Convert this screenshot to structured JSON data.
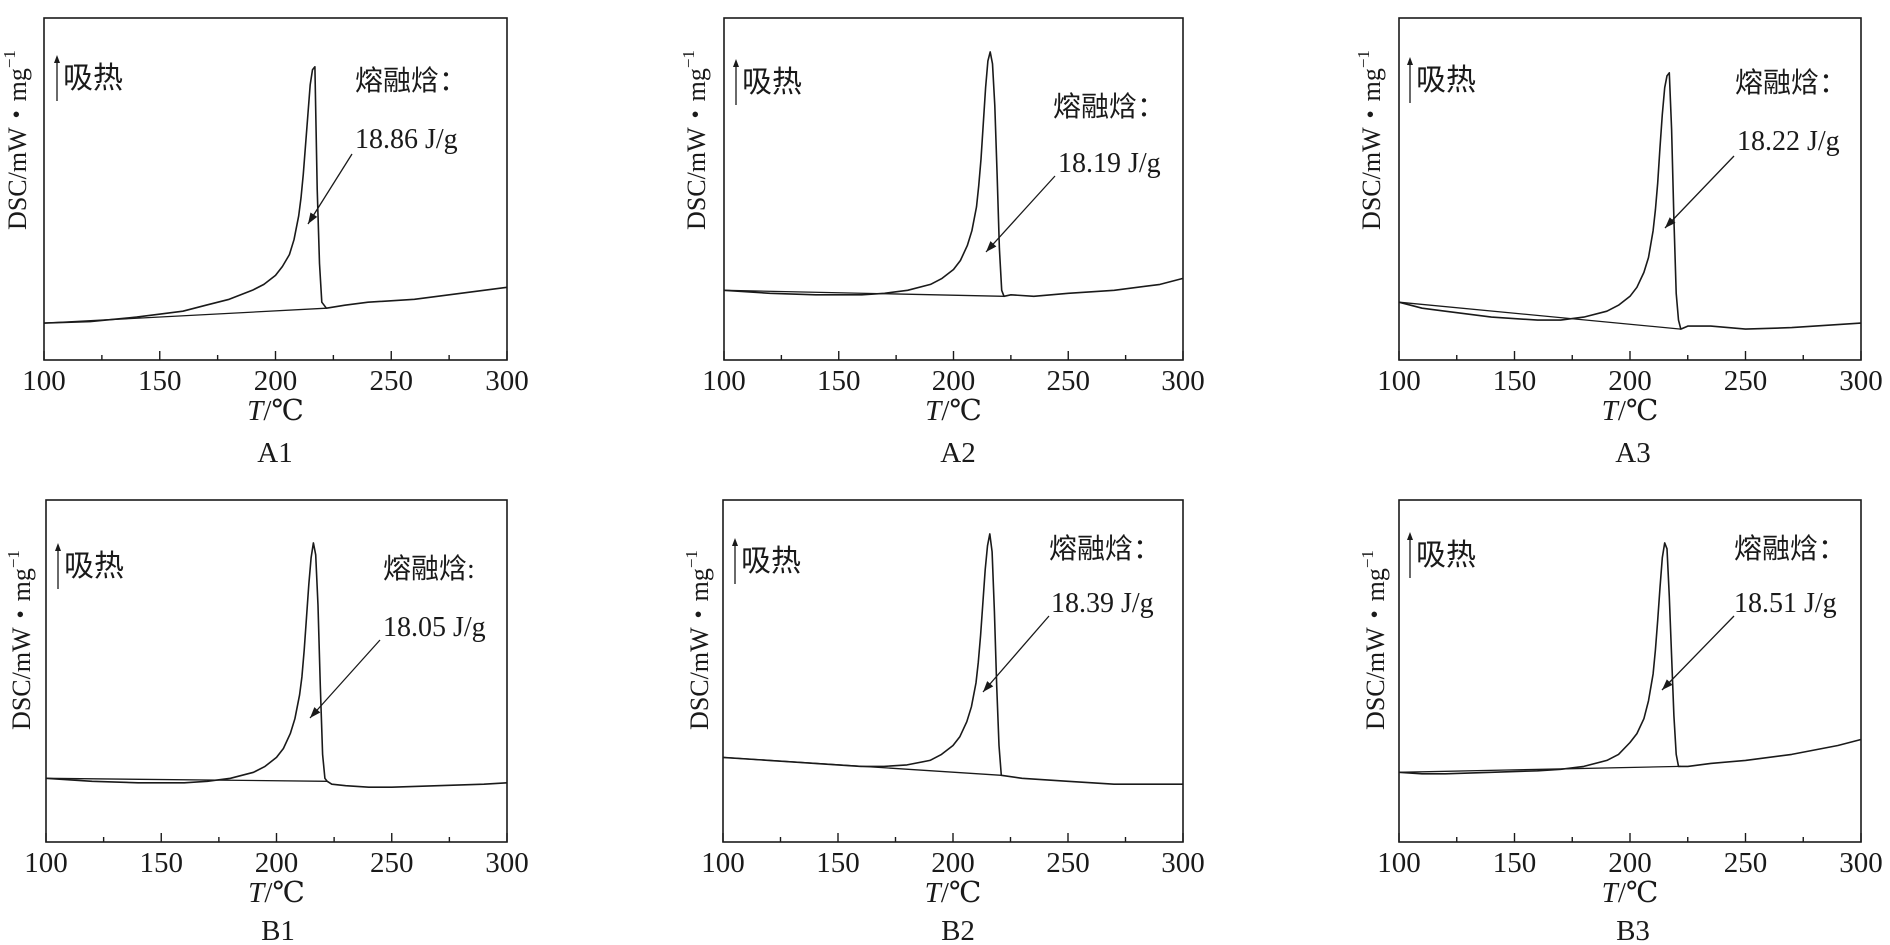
{
  "colors": {
    "ink": "#1a1a1a",
    "background": "#ffffff"
  },
  "chart_data": [
    {
      "type": "line",
      "panel_label": "A1",
      "xlabel_italic": "T",
      "xlabel_unit": "/℃",
      "ylabel": "DSC/mW・mg",
      "ylabel_sup": "−1",
      "endotherm_label": "吸热",
      "enthalpy_title": "熔融焓：",
      "enthalpy_value": "18.86 J/g",
      "xlim": [
        100,
        300
      ],
      "xticks": [
        100,
        150,
        200,
        250,
        300
      ],
      "ylim": [
        0,
        1
      ],
      "series": [
        {
          "x": [
            100,
            120,
            140,
            160,
            170,
            180,
            190,
            195,
            200,
            203,
            206,
            208,
            210,
            211,
            212,
            213,
            214,
            215,
            216,
            217,
            218,
            219,
            220,
            222,
            230,
            240,
            260,
            280,
            300
          ],
          "y": [
            0.05,
            0.055,
            0.07,
            0.09,
            0.11,
            0.13,
            0.16,
            0.18,
            0.21,
            0.24,
            0.28,
            0.33,
            0.41,
            0.47,
            0.55,
            0.65,
            0.75,
            0.85,
            0.9,
            0.91,
            0.5,
            0.25,
            0.12,
            0.1,
            0.11,
            0.12,
            0.13,
            0.15,
            0.17
          ]
        },
        {
          "x": [
            100,
            222
          ],
          "y": [
            0.05,
            0.1
          ]
        }
      ]
    },
    {
      "type": "line",
      "panel_label": "A2",
      "xlabel_italic": "T",
      "xlabel_unit": "/℃",
      "ylabel": "DSC/mW・mg",
      "ylabel_sup": "−1",
      "endotherm_label": "吸热",
      "enthalpy_title": "熔融焓：",
      "enthalpy_value": "18.19 J/g",
      "xlim": [
        100,
        300
      ],
      "xticks": [
        100,
        150,
        200,
        250,
        300
      ],
      "ylim": [
        0,
        1
      ],
      "series": [
        {
          "x": [
            100,
            120,
            140,
            160,
            170,
            180,
            190,
            195,
            200,
            203,
            206,
            208,
            210,
            211,
            212,
            213,
            214,
            215,
            216,
            217,
            218,
            219,
            220,
            221,
            222,
            225,
            235,
            250,
            270,
            290,
            300
          ],
          "y": [
            0.16,
            0.15,
            0.145,
            0.145,
            0.15,
            0.16,
            0.18,
            0.2,
            0.23,
            0.26,
            0.31,
            0.36,
            0.44,
            0.51,
            0.6,
            0.72,
            0.84,
            0.93,
            0.96,
            0.92,
            0.78,
            0.55,
            0.3,
            0.16,
            0.14,
            0.145,
            0.14,
            0.15,
            0.16,
            0.18,
            0.2
          ]
        },
        {
          "x": [
            100,
            222
          ],
          "y": [
            0.16,
            0.14
          ]
        }
      ]
    },
    {
      "type": "line",
      "panel_label": "A3",
      "xlabel_italic": "T",
      "xlabel_unit": "/℃",
      "ylabel": "DSC/mW・mg",
      "ylabel_sup": "−1",
      "endotherm_label": "吸热",
      "enthalpy_title": "熔融焓：",
      "enthalpy_value": "18.22 J/g",
      "xlim": [
        100,
        300
      ],
      "xticks": [
        100,
        150,
        200,
        250,
        300
      ],
      "ylim": [
        0,
        1
      ],
      "series": [
        {
          "x": [
            100,
            110,
            120,
            140,
            160,
            170,
            180,
            190,
            195,
            200,
            203,
            206,
            208,
            210,
            211,
            212,
            213,
            214,
            215,
            216,
            217,
            218,
            219,
            220,
            221,
            222,
            225,
            235,
            250,
            270,
            290,
            300
          ],
          "y": [
            0.12,
            0.1,
            0.09,
            0.07,
            0.06,
            0.06,
            0.07,
            0.09,
            0.11,
            0.14,
            0.17,
            0.22,
            0.27,
            0.36,
            0.43,
            0.52,
            0.64,
            0.75,
            0.84,
            0.88,
            0.89,
            0.7,
            0.4,
            0.15,
            0.06,
            0.03,
            0.04,
            0.04,
            0.03,
            0.035,
            0.045,
            0.05
          ]
        },
        {
          "x": [
            100,
            222
          ],
          "y": [
            0.12,
            0.03
          ]
        }
      ]
    },
    {
      "type": "line",
      "panel_label": "B1",
      "xlabel_italic": "T",
      "xlabel_unit": "/℃",
      "ylabel": "DSC/mW・mg",
      "ylabel_sup": "−1",
      "endotherm_label": "吸热",
      "enthalpy_title": "熔融焓:",
      "enthalpy_value": "18.05 J/g",
      "xlim": [
        100,
        300
      ],
      "xticks": [
        100,
        150,
        200,
        250,
        300
      ],
      "ylim": [
        0,
        1
      ],
      "series": [
        {
          "x": [
            100,
            120,
            140,
            160,
            170,
            180,
            190,
            195,
            200,
            203,
            206,
            208,
            210,
            211,
            212,
            213,
            214,
            215,
            216,
            217,
            218,
            219,
            220,
            221,
            222,
            224,
            230,
            240,
            250,
            270,
            290,
            300
          ],
          "y": [
            0.14,
            0.13,
            0.125,
            0.125,
            0.13,
            0.14,
            0.16,
            0.18,
            0.21,
            0.24,
            0.29,
            0.34,
            0.42,
            0.48,
            0.57,
            0.68,
            0.79,
            0.88,
            0.93,
            0.89,
            0.72,
            0.45,
            0.22,
            0.14,
            0.13,
            0.12,
            0.115,
            0.11,
            0.11,
            0.115,
            0.12,
            0.125
          ]
        },
        {
          "x": [
            100,
            222
          ],
          "y": [
            0.14,
            0.13
          ]
        }
      ]
    },
    {
      "type": "line",
      "panel_label": "B2",
      "xlabel_italic": "T",
      "xlabel_unit": "/℃",
      "ylabel": "DSC/mW・mg",
      "ylabel_sup": "−1",
      "endotherm_label": "吸热",
      "enthalpy_title": "熔融焓：",
      "enthalpy_value": "18.39 J/g",
      "xlim": [
        100,
        300
      ],
      "xticks": [
        100,
        150,
        200,
        250,
        300
      ],
      "ylim": [
        0,
        1
      ],
      "series": [
        {
          "x": [
            100,
            120,
            140,
            150,
            160,
            170,
            180,
            190,
            195,
            200,
            203,
            206,
            208,
            210,
            211,
            212,
            213,
            214,
            215,
            216,
            217,
            218,
            219,
            220,
            221,
            230,
            250,
            270,
            290,
            300
          ],
          "y": [
            0.21,
            0.2,
            0.19,
            0.185,
            0.18,
            0.18,
            0.185,
            0.2,
            0.22,
            0.25,
            0.28,
            0.33,
            0.38,
            0.46,
            0.53,
            0.62,
            0.73,
            0.84,
            0.92,
            0.96,
            0.9,
            0.7,
            0.45,
            0.25,
            0.15,
            0.14,
            0.13,
            0.12,
            0.12,
            0.12
          ]
        },
        {
          "x": [
            100,
            221
          ],
          "y": [
            0.21,
            0.15
          ]
        }
      ]
    },
    {
      "type": "line",
      "panel_label": "B3",
      "xlabel_italic": "T",
      "xlabel_unit": "/℃",
      "ylabel": "DSC/mW・mg",
      "ylabel_sup": "−1",
      "endotherm_label": "吸热",
      "enthalpy_title": "熔融焓：",
      "enthalpy_value": "18.51 J/g",
      "xlim": [
        100,
        300
      ],
      "xticks": [
        100,
        150,
        200,
        250,
        300
      ],
      "ylim": [
        0,
        1
      ],
      "series": [
        {
          "x": [
            100,
            110,
            120,
            140,
            160,
            170,
            180,
            190,
            195,
            200,
            203,
            206,
            208,
            210,
            211,
            212,
            213,
            214,
            215,
            216,
            217,
            218,
            219,
            220,
            221,
            222,
            225,
            235,
            250,
            270,
            290,
            300
          ],
          "y": [
            0.16,
            0.155,
            0.155,
            0.16,
            0.165,
            0.17,
            0.18,
            0.2,
            0.22,
            0.26,
            0.29,
            0.34,
            0.4,
            0.49,
            0.57,
            0.67,
            0.78,
            0.88,
            0.93,
            0.91,
            0.75,
            0.55,
            0.35,
            0.22,
            0.18,
            0.18,
            0.18,
            0.19,
            0.2,
            0.22,
            0.25,
            0.27
          ]
        },
        {
          "x": [
            100,
            222
          ],
          "y": [
            0.16,
            0.18
          ]
        }
      ]
    }
  ]
}
